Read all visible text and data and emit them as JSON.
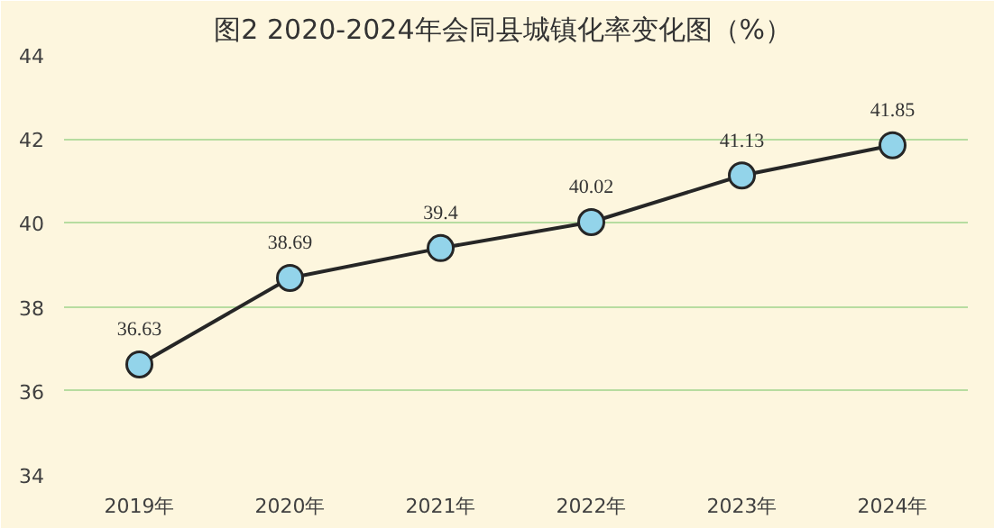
{
  "chart_data": {
    "type": "line",
    "title": "图2    2020-2024年会同县城镇化率变化图（%）",
    "categories": [
      "2019年",
      "2020年",
      "2021年",
      "2022年",
      "2023年",
      "2024年"
    ],
    "series": [
      {
        "color": "#262626",
        "colors": [
          "#93d4ea",
          "#93d4ea",
          "#93d4ea",
          "#93d4ea",
          "#93d4ea",
          "#93d4ea"
        ],
        "values": [
          36.63,
          38.69,
          39.4,
          40.02,
          41.13,
          41.85
        ]
      }
    ],
    "ylim": [
      34,
      44
    ],
    "yticks": [
      34,
      36,
      38,
      40,
      42,
      44
    ],
    "grid": "y",
    "marker": "circle",
    "line_style": "solid",
    "data_labels": true
  }
}
